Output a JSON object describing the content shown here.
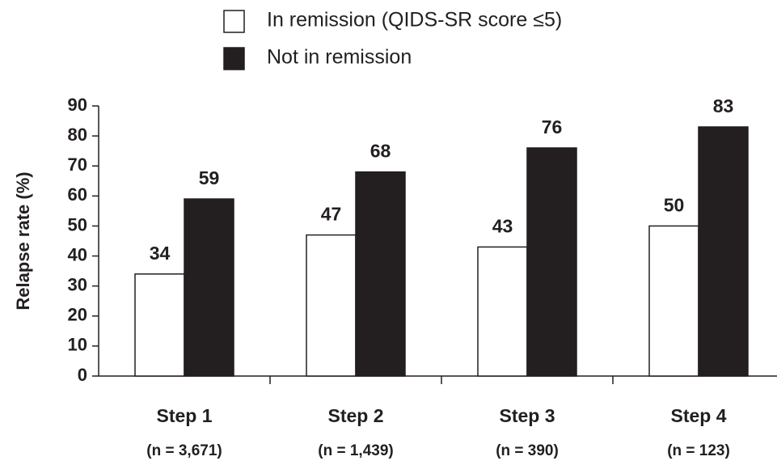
{
  "chart_data": {
    "type": "bar",
    "y_label": "Relapse rate (%)",
    "categories": [
      "Step 1",
      "Step 2",
      "Step 3",
      "Step 4"
    ],
    "subcategories": [
      "(n = 3,671)",
      "(n = 1,439)",
      "(n = 390)",
      "(n = 123)"
    ],
    "series": [
      {
        "name": "In remission (QIDS-SR score ≤5)",
        "color": "#ffffff",
        "values": [
          34,
          47,
          43,
          50
        ]
      },
      {
        "name": "Not in remission",
        "color": "#231f20",
        "values": [
          59,
          68,
          76,
          83
        ]
      }
    ],
    "ylim": [
      0,
      90
    ],
    "yticks": [
      0,
      10,
      20,
      30,
      40,
      50,
      60,
      70,
      80,
      90
    ]
  }
}
